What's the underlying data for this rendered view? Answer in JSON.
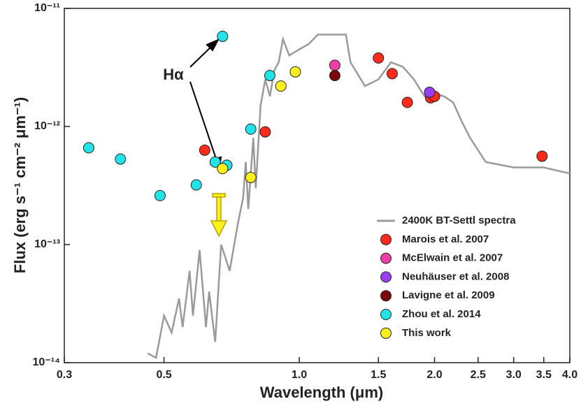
{
  "chart_data": {
    "type": "scatter",
    "x_scale": "log",
    "y_scale": "log",
    "xlabel": "Wavelength (μm)",
    "ylabel": "Flux (erg s⁻¹ cm⁻² μm⁻¹)",
    "xlim": [
      0.3,
      4.0
    ],
    "ylim": [
      1e-14,
      1e-11
    ],
    "xticks": [
      0.3,
      0.5,
      {
        "value": 1.0,
        "label": "1.0"
      },
      1.5,
      {
        "value": 2.0,
        "label": "2.0"
      },
      2.5,
      {
        "value": 3.0,
        "label": "3.0"
      },
      3.5,
      {
        "value": 4.0,
        "label": "4.0"
      }
    ],
    "yticks": [
      {
        "value": 1e-14,
        "label": "10⁻¹⁴"
      },
      {
        "value": 1e-13,
        "label": "10⁻¹³"
      },
      {
        "value": 1e-12,
        "label": "10⁻¹²"
      },
      {
        "value": 1e-11,
        "label": "10⁻¹¹"
      }
    ],
    "annotations": [
      "Hα"
    ],
    "legend": "lower right",
    "series": [
      {
        "name": "2400K BT-Settl spectra",
        "type": "line",
        "color": "#9a9a9a",
        "x": [
          0.46,
          0.48,
          0.5,
          0.52,
          0.54,
          0.55,
          0.57,
          0.58,
          0.6,
          0.62,
          0.63,
          0.65,
          0.67,
          0.7,
          0.73,
          0.75,
          0.76,
          0.77,
          0.79,
          0.8,
          0.82,
          0.84,
          0.86,
          0.88,
          0.9,
          0.92,
          0.95,
          1.0,
          1.05,
          1.1,
          1.2,
          1.27,
          1.3,
          1.4,
          1.5,
          1.6,
          1.7,
          1.8,
          1.9,
          2.0,
          2.1,
          2.2,
          2.3,
          2.4,
          2.6,
          3.0,
          3.5,
          4.0
        ],
        "values": [
          1.2e-14,
          1.1e-14,
          2.5e-14,
          1.8e-14,
          3.5e-14,
          2e-14,
          6e-14,
          2.5e-14,
          9e-14,
          2e-14,
          4e-14,
          1.5e-14,
          1e-13,
          6e-14,
          1.5e-13,
          2.5e-13,
          5e-13,
          2e-13,
          8e-13,
          3e-13,
          1.5e-12,
          2.5e-12,
          1.8e-12,
          3e-12,
          3.5e-12,
          5.5e-12,
          4e-12,
          4.5e-12,
          5e-12,
          6e-12,
          6e-12,
          6e-12,
          3.5e-12,
          2.2e-12,
          2.5e-12,
          3.5e-12,
          3.2e-12,
          2.5e-12,
          1.8e-12,
          1.9e-12,
          1.8e-12,
          1.6e-12,
          1.1e-12,
          8e-13,
          5e-13,
          4.5e-13,
          4.5e-13,
          4e-13
        ]
      },
      {
        "name": "Marois et al. 2007",
        "color": "#ff2a1a",
        "x": [
          0.616,
          0.84,
          1.5,
          1.61,
          1.74,
          1.96,
          2.0,
          3.47
        ],
        "values": [
          6.3e-13,
          9e-13,
          3.8e-12,
          2.8e-12,
          1.6e-12,
          1.75e-12,
          1.8e-12,
          5.6e-13
        ]
      },
      {
        "name": "McElwain et al. 2007",
        "color": "#ee3fa8",
        "x": [
          1.2
        ],
        "values": [
          3.3e-12
        ]
      },
      {
        "name": "Neuhäuser et al. 2008",
        "color": "#9a3ef0",
        "x": [
          1.95
        ],
        "values": [
          1.95e-12
        ]
      },
      {
        "name": "Lavigne et al. 2009",
        "color": "#7a0a0a",
        "x": [
          1.2
        ],
        "values": [
          2.7e-12
        ]
      },
      {
        "name": "Zhou et al. 2014",
        "color": "#22e4e8",
        "x": [
          0.34,
          0.4,
          0.49,
          0.59,
          0.65,
          0.69,
          0.675,
          0.78,
          0.86
        ],
        "values": [
          6.6e-13,
          5.3e-13,
          2.6e-13,
          3.2e-13,
          5e-13,
          4.7e-13,
          5.8e-12,
          9.5e-13,
          2.7e-12
        ]
      },
      {
        "name": "This work",
        "color": "#ffef1a",
        "x": [
          0.675,
          0.78,
          0.91,
          0.98
        ],
        "values": [
          4.4e-13,
          3.7e-13,
          2.2e-12,
          2.9e-12
        ]
      }
    ]
  }
}
